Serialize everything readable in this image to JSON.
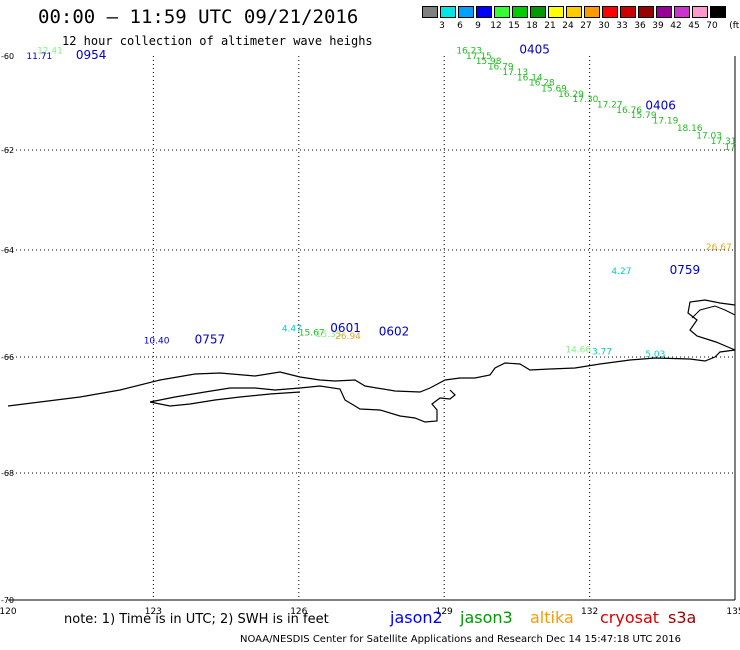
{
  "header": {
    "title": "00:00 – 11:59 UTC 09/21/2016",
    "subtitle": "12 hour collection of altimeter wave heighs"
  },
  "legend": {
    "unit": "(ft)",
    "levels": [
      {
        "label": "3",
        "color": "#7f7f7f"
      },
      {
        "label": "6",
        "color": "#00e5e5"
      },
      {
        "label": "9",
        "color": "#00a0ff"
      },
      {
        "label": "12",
        "color": "#0000ff"
      },
      {
        "label": "15",
        "color": "#33ff33"
      },
      {
        "label": "18",
        "color": "#00cc00"
      },
      {
        "label": "21",
        "color": "#009900"
      },
      {
        "label": "24",
        "color": "#ffff00"
      },
      {
        "label": "27",
        "color": "#ffcc00"
      },
      {
        "label": "30",
        "color": "#ff9900"
      },
      {
        "label": "33",
        "color": "#ff0000"
      },
      {
        "label": "36",
        "color": "#cc0000"
      },
      {
        "label": "39",
        "color": "#990000"
      },
      {
        "label": "42",
        "color": "#990099"
      },
      {
        "label": "45",
        "color": "#cc33cc"
      },
      {
        "label": "70",
        "color": "#ff99cc"
      },
      {
        "label": "",
        "color": "#000000"
      }
    ]
  },
  "axes": {
    "lat_labels": [
      "-60",
      "-62",
      "-64",
      "-66",
      "-68",
      "-70"
    ],
    "lon_labels": [
      "120",
      "123",
      "126",
      "129",
      "132",
      "135"
    ],
    "lat_range": [
      -60,
      -70
    ],
    "lon_range": [
      120,
      135
    ]
  },
  "observations": [
    {
      "value": "12.41",
      "lon": 120.6,
      "lat": -59.95,
      "color": "#88ee88"
    },
    {
      "value": "11.71",
      "lon": 120.38,
      "lat": -60.06,
      "color": "#0000cc"
    },
    {
      "value": "16.23",
      "lon": 129.25,
      "lat": -59.95,
      "color": "#22bb22"
    },
    {
      "value": "17.15",
      "lon": 129.45,
      "lat": -60.06,
      "color": "#22bb22"
    },
    {
      "value": "15.98",
      "lon": 129.65,
      "lat": -60.17,
      "color": "#22bb22"
    },
    {
      "value": "16.79",
      "lon": 129.9,
      "lat": -60.29,
      "color": "#22bb22"
    },
    {
      "value": "17.13",
      "lon": 130.2,
      "lat": -60.4,
      "color": "#22bb22"
    },
    {
      "value": "16.14",
      "lon": 130.5,
      "lat": -60.52,
      "color": "#22bb22"
    },
    {
      "value": "16.28",
      "lon": 130.75,
      "lat": -60.63,
      "color": "#22bb22"
    },
    {
      "value": "15.69",
      "lon": 131.0,
      "lat": -60.76,
      "color": "#22bb22"
    },
    {
      "value": "16.29",
      "lon": 131.35,
      "lat": -60.87,
      "color": "#22bb22"
    },
    {
      "value": "17.30",
      "lon": 131.65,
      "lat": -60.98,
      "color": "#22bb22"
    },
    {
      "value": "17.27",
      "lon": 132.15,
      "lat": -61.1,
      "color": "#22bb22"
    },
    {
      "value": "16.76",
      "lon": 132.55,
      "lat": -61.21,
      "color": "#22bb22"
    },
    {
      "value": "15.79",
      "lon": 132.85,
      "lat": -61.32,
      "color": "#22bb22"
    },
    {
      "value": "17.19",
      "lon": 133.3,
      "lat": -61.44,
      "color": "#22bb22"
    },
    {
      "value": "18.16",
      "lon": 133.8,
      "lat": -61.6,
      "color": "#22bb22"
    },
    {
      "value": "17.03",
      "lon": 134.2,
      "lat": -61.75,
      "color": "#22bb22"
    },
    {
      "value": "17.31",
      "lon": 134.5,
      "lat": -61.87,
      "color": "#22bb22"
    },
    {
      "value": "17",
      "lon": 134.78,
      "lat": -62.0,
      "color": "#22bb22"
    },
    {
      "value": "26.67",
      "lon": 134.4,
      "lat": -64.0,
      "color": "#ddaa22"
    },
    {
      "value": "4.27",
      "lon": 132.45,
      "lat": -64.45,
      "color": "#00cccc"
    },
    {
      "value": "4.47",
      "lon": 125.65,
      "lat": -65.52,
      "color": "#00cccc"
    },
    {
      "value": "15.67",
      "lon": 126.0,
      "lat": -65.6,
      "color": "#22bb22"
    },
    {
      "value": "15.33",
      "lon": 126.35,
      "lat": -65.63,
      "color": "#88ee88"
    },
    {
      "value": "26.94",
      "lon": 126.75,
      "lat": -65.66,
      "color": "#ddaa22"
    },
    {
      "value": "10.40",
      "lon": 122.8,
      "lat": -65.75,
      "color": "#0000cc"
    },
    {
      "value": "14.66",
      "lon": 131.5,
      "lat": -65.92,
      "color": "#88ee88"
    },
    {
      "value": "3.77",
      "lon": 132.05,
      "lat": -65.95,
      "color": "#00cccc"
    },
    {
      "value": "5.03",
      "lon": 133.15,
      "lat": -66.0,
      "color": "#00cccc"
    }
  ],
  "times": [
    {
      "value": "0954",
      "lon": 121.4,
      "lat": -60.06,
      "color": "#0000cc"
    },
    {
      "value": "0405",
      "lon": 130.55,
      "lat": -59.95,
      "color": "#0000cc"
    },
    {
      "value": "0406",
      "lon": 133.15,
      "lat": -61.14,
      "color": "#0000cc"
    },
    {
      "value": "0759",
      "lon": 133.65,
      "lat": -64.45,
      "color": "#0000cc"
    },
    {
      "value": "0601",
      "lon": 126.65,
      "lat": -65.53,
      "color": "#0000cc"
    },
    {
      "value": "0602",
      "lon": 127.65,
      "lat": -65.6,
      "color": "#0000cc"
    },
    {
      "value": "0757",
      "lon": 123.85,
      "lat": -65.75,
      "color": "#0000cc"
    }
  ],
  "footer": {
    "note": "note: 1) Time is in UTC; 2) SWH is in feet",
    "satellites": [
      {
        "name": "jason2",
        "color": "#0000ff"
      },
      {
        "name": "jason3",
        "color": "#009900"
      },
      {
        "name": "altika",
        "color": "#ff9900"
      },
      {
        "name": "cryosat",
        "color": "#dd0000"
      },
      {
        "name": "s3a",
        "color": "#990000"
      }
    ],
    "credit": "NOAA/NESDIS Center for Satellite Applications and Research    Dec 14 15:47:18 UTC 2016"
  }
}
